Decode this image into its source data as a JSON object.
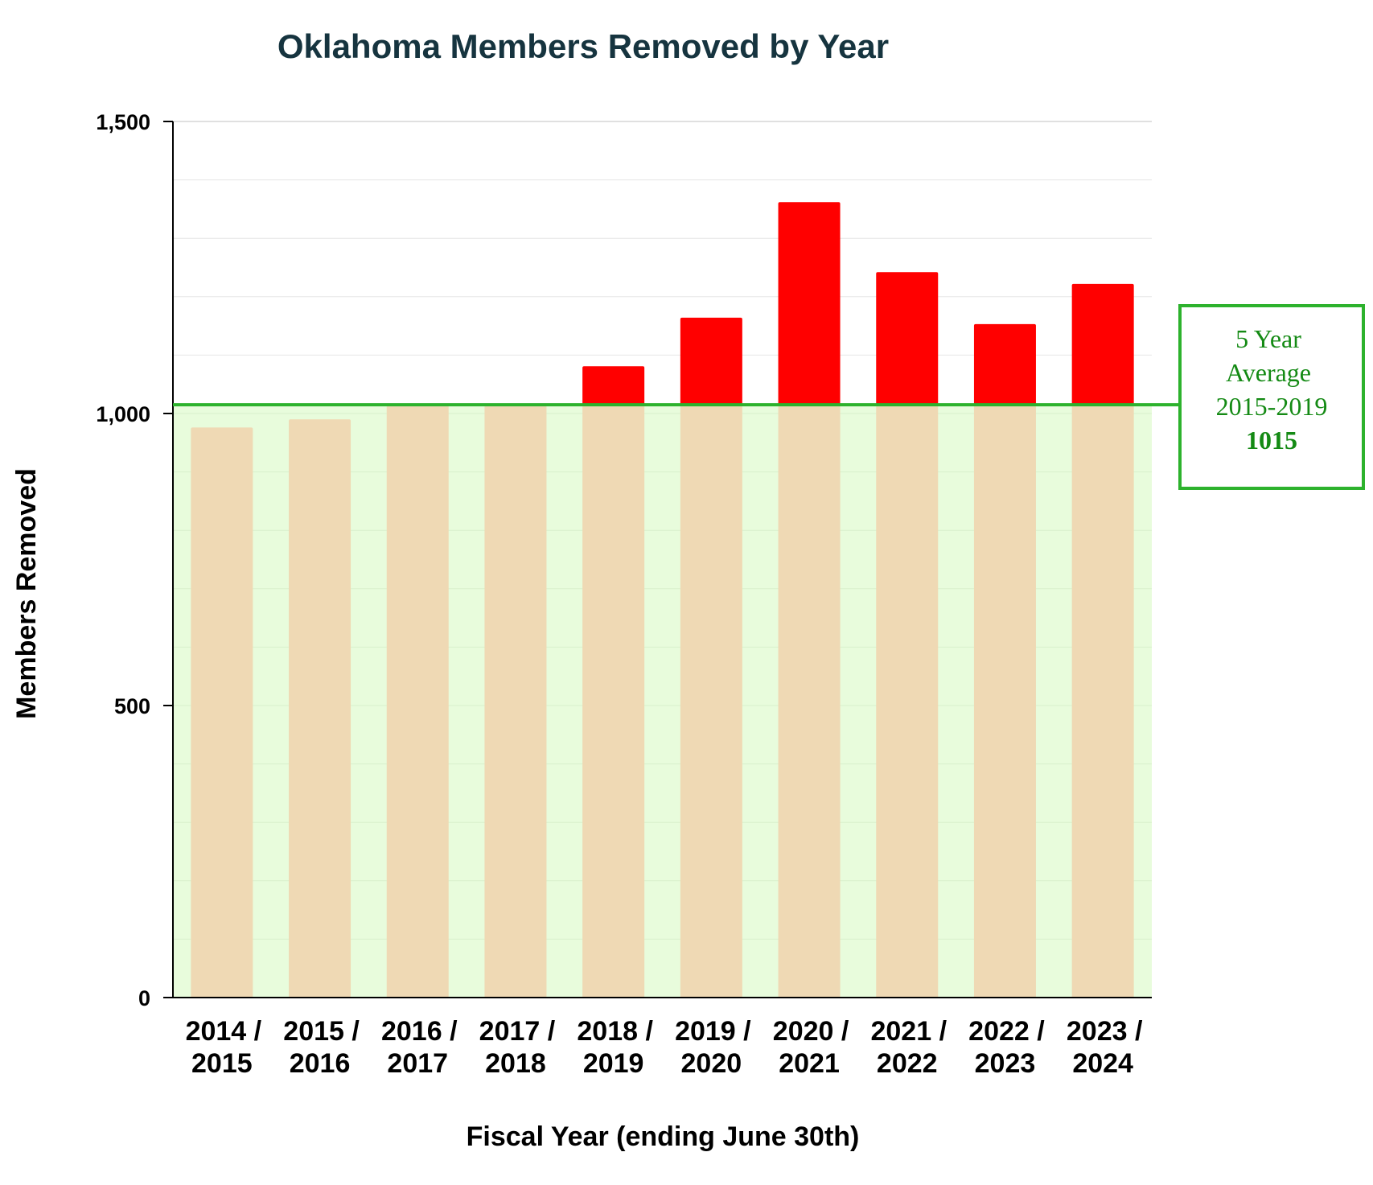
{
  "chart_data": {
    "type": "bar",
    "title": "Oklahoma Members Removed by Year",
    "xlabel": "Fiscal Year (ending June 30th)",
    "ylabel": "Members Removed",
    "ylim": [
      0,
      1500
    ],
    "yticks": [
      0,
      500,
      1000,
      1500
    ],
    "ytick_labels": [
      "0",
      "500",
      "1,000",
      "1,500"
    ],
    "grid": true,
    "categories": [
      [
        "2014 /",
        "2015"
      ],
      [
        "2015 /",
        "2016"
      ],
      [
        "2016 /",
        "2017"
      ],
      [
        "2017 /",
        "2018"
      ],
      [
        "2018 /",
        "2019"
      ],
      [
        "2019 /",
        "2020"
      ],
      [
        "2020 /",
        "2021"
      ],
      [
        "2021 /",
        "2022"
      ],
      [
        "2022 /",
        "2023"
      ],
      [
        "2023 /",
        "2024"
      ]
    ],
    "values": [
      976,
      990,
      1014,
      1014,
      1081,
      1164,
      1362,
      1242,
      1153,
      1222
    ],
    "reference_line": {
      "value": 1015,
      "label_lines": [
        "5 Year",
        "Average",
        "2015-2019"
      ],
      "value_label": "1015"
    },
    "colors": {
      "below_band": "#e8fcdc",
      "bar_below": "#efd9b4",
      "bar_above": "#ff0000",
      "reference": "#2db22d",
      "title": "#16343f"
    }
  }
}
